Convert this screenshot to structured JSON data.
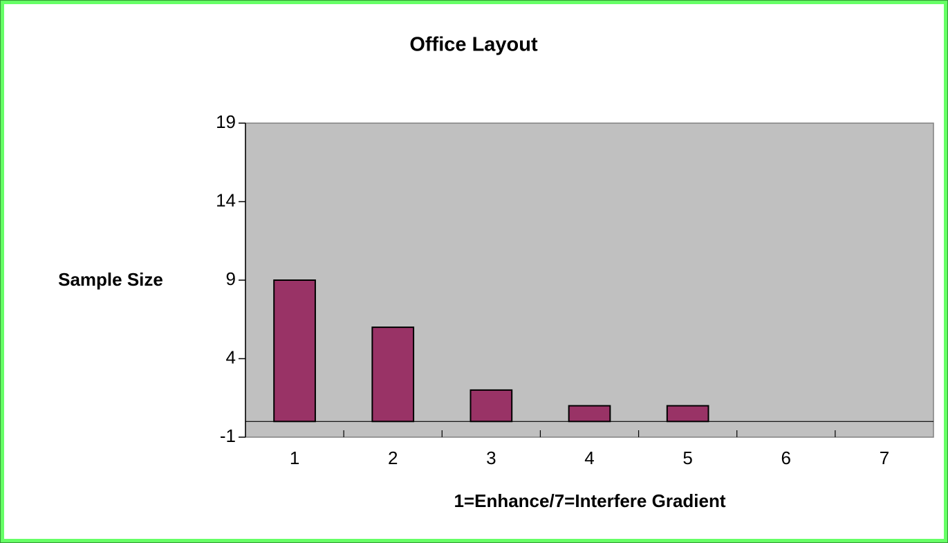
{
  "chart_data": {
    "type": "bar",
    "title": "Office Layout",
    "x_label": "1=Enhance/7=Interfere Gradient",
    "y_label": "Sample Size",
    "categories": [
      "1",
      "2",
      "3",
      "4",
      "5",
      "6",
      "7"
    ],
    "values": [
      9,
      6,
      2,
      1,
      1,
      0,
      0
    ],
    "color": "#993366",
    "ylim": [
      -1,
      19
    ],
    "yticks": [
      -1,
      4,
      9,
      14,
      19
    ],
    "grid": false
  }
}
